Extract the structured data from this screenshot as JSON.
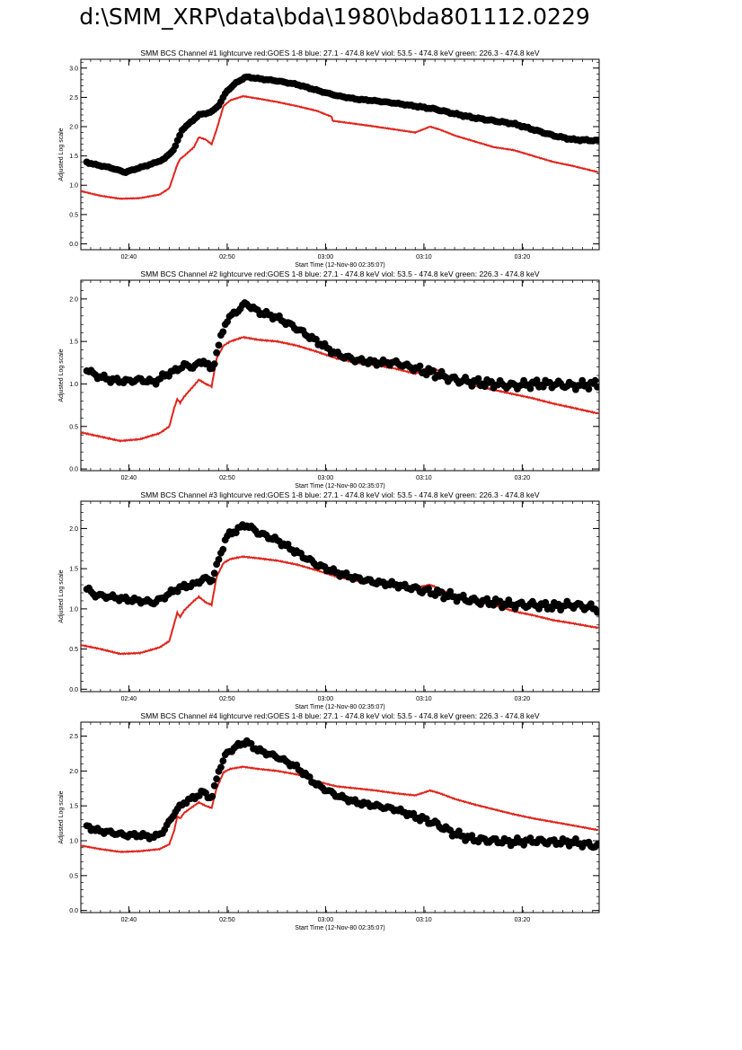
{
  "page": {
    "title": "d:\\SMM_XRP\\data\\bda\\1980\\bda801112.0229"
  },
  "colors": {
    "goes": "#e0241b",
    "bcs": "#000000",
    "axis": "#000000"
  },
  "chart_data": [
    {
      "type": "scatter+line",
      "title": "SMM BCS Channel #1 lightcurve  red:GOES 1-8  blue: 27.1 - 474.8 keV  viol: 53.5 - 474.8 keV  green: 226.3 - 474.8 keV",
      "xlabel": "Start Time (12-Nov-80 02:35:07)",
      "ylabel": "Adjusted Log scale",
      "xlim_min": [
        0,
        52.7
      ],
      "ylim": [
        -0.1,
        3.15
      ],
      "yticks": [
        0.0,
        0.5,
        1.0,
        1.5,
        2.0,
        2.5,
        3.0
      ],
      "ytick_labels": [
        "0.0",
        "0.5",
        "1.0",
        "1.5",
        "2.0",
        "2.5",
        "3.0"
      ],
      "xticks": [
        4.88,
        14.88,
        24.88,
        34.88,
        44.88
      ],
      "xtick_labels": [
        "02:40",
        "02:50",
        "03:00",
        "03:10",
        "03:20"
      ],
      "series": [
        {
          "name": "GOES 1-8",
          "style": "line",
          "x": [
            0,
            2,
            4,
            6,
            8,
            9,
            9.5,
            9.8,
            10.1,
            10.5,
            11.5,
            12,
            12.7,
            13.3,
            13.8,
            14.5,
            15.2,
            16.5,
            18,
            20,
            22,
            24,
            25.5,
            25.6,
            30,
            34,
            35.5,
            36.5,
            38,
            40,
            42,
            44,
            46,
            48,
            50,
            52.7
          ],
          "values": [
            0.9,
            0.82,
            0.77,
            0.78,
            0.84,
            0.95,
            1.2,
            1.35,
            1.45,
            1.5,
            1.65,
            1.82,
            1.78,
            1.7,
            1.95,
            2.35,
            2.45,
            2.52,
            2.48,
            2.42,
            2.35,
            2.27,
            2.17,
            2.1,
            2.0,
            1.9,
            2.0,
            1.95,
            1.85,
            1.75,
            1.65,
            1.6,
            1.5,
            1.4,
            1.33,
            1.22
          ]
        },
        {
          "name": "BCS",
          "style": "markers",
          "x": [
            0,
            1.5,
            3,
            4.5,
            6,
            7.5,
            8.5,
            9.5,
            10.3,
            11,
            12,
            13.3,
            14.1,
            14.8,
            15.8,
            16.8,
            18,
            20,
            22,
            24,
            26,
            28,
            30,
            32,
            34,
            36,
            38,
            40,
            42,
            44,
            46,
            48,
            50,
            52.7
          ],
          "values": [
            1.42,
            1.35,
            1.3,
            1.22,
            1.3,
            1.38,
            1.45,
            1.62,
            1.95,
            2.05,
            2.2,
            2.25,
            2.38,
            2.6,
            2.75,
            2.85,
            2.82,
            2.78,
            2.72,
            2.62,
            2.53,
            2.47,
            2.44,
            2.4,
            2.35,
            2.3,
            2.22,
            2.15,
            2.1,
            2.05,
            1.95,
            1.85,
            1.78,
            1.76
          ]
        }
      ]
    },
    {
      "type": "scatter+line",
      "title": "SMM BCS Channel #2 lightcurve  red:GOES 1-8  blue: 27.1 - 474.8 keV  viol: 53.5 - 474.8 keV  green: 226.3 - 474.8 keV",
      "xlabel": "Start Time (12-Nov-80 02:35:07)",
      "ylabel": "Adjusted Log scale",
      "xlim_min": [
        0,
        52.7
      ],
      "ylim": [
        -0.02,
        2.22
      ],
      "yticks": [
        0.0,
        0.5,
        1.0,
        1.5,
        2.0
      ],
      "ytick_labels": [
        "0.0",
        "0.5",
        "1.0",
        "1.5",
        "2.0"
      ],
      "xticks": [
        4.88,
        14.88,
        24.88,
        34.88,
        44.88
      ],
      "xtick_labels": [
        "02:40",
        "02:50",
        "03:00",
        "03:10",
        "03:20"
      ],
      "series": [
        {
          "name": "GOES 1-8",
          "style": "line",
          "x": [
            0,
            2,
            4,
            6,
            8,
            9,
            9.5,
            9.8,
            10.1,
            10.5,
            11.5,
            12,
            12.7,
            13.3,
            13.8,
            14.5,
            15.2,
            16.5,
            18,
            20,
            22,
            24,
            26,
            28,
            30,
            32,
            34,
            35.5,
            36.5,
            38,
            40,
            42,
            44,
            46,
            48,
            50,
            52.7
          ],
          "values": [
            0.43,
            0.38,
            0.33,
            0.35,
            0.42,
            0.5,
            0.72,
            0.82,
            0.78,
            0.85,
            0.98,
            1.05,
            1.0,
            0.97,
            1.3,
            1.45,
            1.5,
            1.55,
            1.52,
            1.5,
            1.45,
            1.38,
            1.3,
            1.25,
            1.22,
            1.18,
            1.12,
            1.2,
            1.15,
            1.05,
            0.98,
            0.93,
            0.88,
            0.83,
            0.77,
            0.72,
            0.65
          ]
        },
        {
          "name": "BCS",
          "style": "markers",
          "x": [
            0,
            1.5,
            3,
            4.5,
            6,
            7.5,
            8.5,
            9.5,
            10.5,
            11.5,
            12.5,
            13.3,
            14,
            14.8,
            15.8,
            16.8,
            18,
            20,
            22,
            24,
            26,
            28,
            30,
            32,
            34,
            36,
            38,
            40,
            42,
            44,
            46,
            48,
            50,
            52.7
          ],
          "values": [
            1.22,
            1.1,
            1.05,
            1.03,
            1.05,
            1.02,
            1.1,
            1.15,
            1.22,
            1.2,
            1.28,
            1.15,
            1.45,
            1.75,
            1.85,
            1.95,
            1.85,
            1.78,
            1.65,
            1.5,
            1.35,
            1.28,
            1.25,
            1.25,
            1.18,
            1.12,
            1.05,
            1.02,
            1.0,
            0.98,
            1.0,
            1.0,
            0.98,
            1.0
          ]
        }
      ]
    },
    {
      "type": "scatter+line",
      "title": "SMM BCS Channel #3 lightcurve  red:GOES 1-8  blue: 27.1 - 474.8 keV  viol: 53.5 - 474.8 keV  green: 226.3 - 474.8 keV",
      "xlabel": "Start Time (12-Nov-80 02:35:07)",
      "ylabel": "Adjusted Log scale",
      "xlim_min": [
        0,
        52.7
      ],
      "ylim": [
        -0.03,
        2.34
      ],
      "yticks": [
        0.0,
        0.5,
        1.0,
        1.5,
        2.0
      ],
      "ytick_labels": [
        "0.0",
        "0.5",
        "1.0",
        "1.5",
        "2.0"
      ],
      "xticks": [
        4.88,
        14.88,
        24.88,
        34.88,
        44.88
      ],
      "xtick_labels": [
        "02:40",
        "02:50",
        "03:00",
        "03:10",
        "03:20"
      ],
      "series": [
        {
          "name": "GOES 1-8",
          "style": "line",
          "x": [
            0,
            2,
            4,
            6,
            8,
            9,
            9.5,
            9.8,
            10.1,
            10.5,
            11.5,
            12,
            12.7,
            13.3,
            13.8,
            14.5,
            15.2,
            16.5,
            18,
            20,
            22,
            24,
            26,
            28,
            30,
            32,
            34,
            35.5,
            36.5,
            38,
            40,
            42,
            44,
            46,
            48,
            50,
            52.7
          ],
          "values": [
            0.55,
            0.5,
            0.44,
            0.45,
            0.52,
            0.6,
            0.82,
            0.95,
            0.9,
            0.98,
            1.1,
            1.15,
            1.08,
            1.05,
            1.4,
            1.57,
            1.62,
            1.65,
            1.63,
            1.6,
            1.55,
            1.48,
            1.4,
            1.35,
            1.32,
            1.3,
            1.26,
            1.3,
            1.25,
            1.15,
            1.08,
            1.05,
            0.97,
            0.92,
            0.86,
            0.82,
            0.76
          ]
        },
        {
          "name": "BCS",
          "style": "markers",
          "x": [
            0,
            1.5,
            3,
            4.5,
            6,
            7.5,
            8.5,
            9.5,
            10.5,
            11.5,
            12.5,
            13.3,
            14,
            14.8,
            15.8,
            16.8,
            18,
            20,
            22,
            24,
            26,
            28,
            30,
            32,
            34,
            36,
            38,
            40,
            42,
            44,
            46,
            48,
            50,
            52.7
          ],
          "values": [
            1.3,
            1.17,
            1.15,
            1.12,
            1.1,
            1.08,
            1.15,
            1.23,
            1.28,
            1.3,
            1.38,
            1.35,
            1.6,
            1.9,
            1.98,
            2.05,
            1.95,
            1.85,
            1.7,
            1.55,
            1.45,
            1.38,
            1.33,
            1.3,
            1.25,
            1.2,
            1.15,
            1.1,
            1.08,
            1.05,
            1.05,
            1.03,
            1.05,
            1.0
          ]
        }
      ]
    },
    {
      "type": "scatter+line",
      "title": "SMM BCS Channel #4 lightcurve  red:GOES 1-8  blue: 27.1 - 474.8 keV  viol: 53.5 - 474.8 keV  green: 226.3 - 474.8 keV",
      "xlabel": "Start Time (12-Nov-80 02:35:07)",
      "ylabel": "Adjusted Log scale",
      "xlim_min": [
        0,
        52.7
      ],
      "ylim": [
        -0.03,
        2.7
      ],
      "yticks": [
        0.0,
        0.5,
        1.0,
        1.5,
        2.0,
        2.5
      ],
      "ytick_labels": [
        "0.0",
        "0.5",
        "1.0",
        "1.5",
        "2.0",
        "2.5"
      ],
      "xticks": [
        4.88,
        14.88,
        24.88,
        34.88,
        44.88
      ],
      "xtick_labels": [
        "02:40",
        "02:50",
        "03:00",
        "03:10",
        "03:20"
      ],
      "series": [
        {
          "name": "GOES 1-8",
          "style": "line",
          "x": [
            0,
            2,
            4,
            6,
            8,
            9,
            9.5,
            9.8,
            10.1,
            10.5,
            11.5,
            12,
            12.7,
            13.3,
            13.8,
            14.5,
            15.2,
            16.5,
            18,
            20,
            22,
            24,
            26,
            28,
            30,
            32,
            34,
            35.5,
            36.5,
            38,
            40,
            42,
            44,
            46,
            48,
            50,
            52.7
          ],
          "values": [
            0.93,
            0.88,
            0.84,
            0.85,
            0.88,
            0.95,
            1.15,
            1.35,
            1.32,
            1.4,
            1.5,
            1.55,
            1.5,
            1.47,
            1.75,
            1.98,
            2.03,
            2.06,
            2.03,
            2.0,
            1.95,
            1.85,
            1.78,
            1.75,
            1.72,
            1.68,
            1.65,
            1.72,
            1.68,
            1.6,
            1.52,
            1.45,
            1.38,
            1.32,
            1.27,
            1.22,
            1.15
          ]
        },
        {
          "name": "BCS",
          "style": "markers",
          "x": [
            0,
            1.5,
            3,
            4.5,
            6,
            7.5,
            8.5,
            9.5,
            10.5,
            11.5,
            12.5,
            13.3,
            14,
            14.8,
            15.8,
            16.8,
            18,
            20,
            22,
            24,
            26,
            28,
            30,
            32,
            34,
            36,
            38,
            40,
            42,
            44,
            46,
            48,
            50,
            52.7
          ],
          "values": [
            1.25,
            1.15,
            1.12,
            1.08,
            1.08,
            1.05,
            1.15,
            1.4,
            1.55,
            1.62,
            1.7,
            1.6,
            2.0,
            2.25,
            2.35,
            2.42,
            2.3,
            2.2,
            2.05,
            1.8,
            1.65,
            1.55,
            1.5,
            1.45,
            1.35,
            1.25,
            1.1,
            1.02,
            1.0,
            0.98,
            1.0,
            0.98,
            0.98,
            0.92
          ]
        }
      ]
    }
  ]
}
